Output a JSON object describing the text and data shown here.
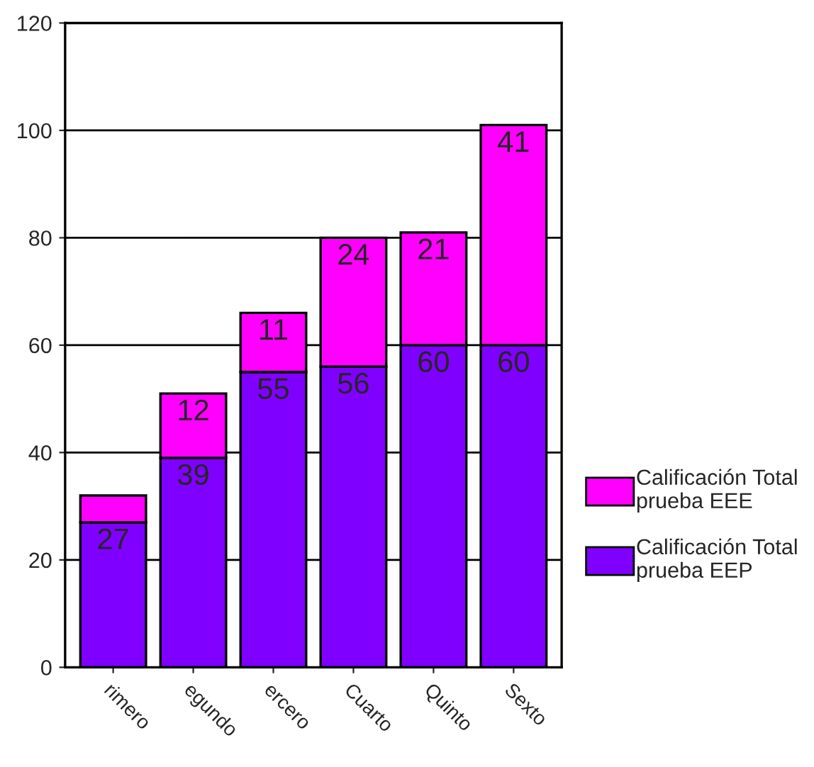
{
  "chart_data": {
    "type": "bar",
    "stacked": true,
    "categories": [
      "rimero",
      "egundo",
      "ercero",
      "Cuarto",
      "Quinto",
      "Sexto"
    ],
    "series": [
      {
        "name": "Calificación Total\nprueba EEP",
        "color": "#8000ff",
        "values": [
          27,
          39,
          55,
          56,
          60,
          60
        ],
        "value_labels": [
          "27",
          "39",
          "55",
          "56",
          "60",
          "60"
        ]
      },
      {
        "name": "Calificación Total\nprueba EEE",
        "color": "#ff00ff",
        "values": [
          5,
          12,
          11,
          24,
          21,
          41
        ],
        "value_labels": [
          null,
          "12",
          "11",
          "24",
          "21",
          "41"
        ]
      }
    ],
    "ylim": [
      0,
      120
    ],
    "yticks": [
      0,
      20,
      40,
      60,
      80,
      100,
      120
    ],
    "grid": "y",
    "legend": "right"
  }
}
